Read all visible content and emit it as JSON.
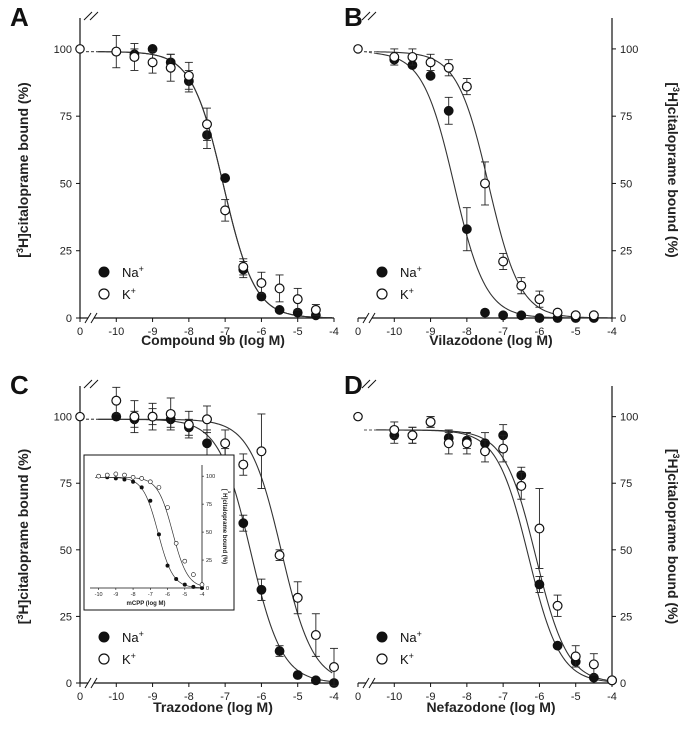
{
  "chart_data": [
    {
      "type": "scatter",
      "panel_label": "A",
      "xlabel": "Compound 9b (log M)",
      "ylabel": "citaloprame bound (%)",
      "xlim": [
        -11,
        -4
      ],
      "ylim": [
        0,
        110
      ],
      "y_axis_side": "left",
      "x_ticks": [
        "0",
        "-10",
        "-9",
        "-8",
        "-7",
        "-6",
        "-5",
        "-4"
      ],
      "y_ticks": [
        0,
        25,
        50,
        75,
        100
      ],
      "legend": {
        "placement": "bottom-left",
        "entries": [
          {
            "marker": "filled",
            "ion": "Na"
          },
          {
            "marker": "open",
            "ion": "K"
          }
        ]
      },
      "series": [
        {
          "name": "Na+",
          "marker": "filled",
          "x": [
            -10,
            -9.5,
            -9,
            -8.5,
            -8,
            -7.5,
            -7,
            -6.5,
            -6,
            -5.5,
            -5,
            -4.5
          ],
          "y": [
            99,
            98,
            100,
            95,
            88,
            68,
            52,
            18,
            8,
            3,
            2,
            1
          ],
          "err": [
            0,
            2,
            0,
            3,
            4,
            5,
            0,
            3,
            0,
            0,
            0,
            0
          ],
          "fit": {
            "top": 99,
            "bottom": 0,
            "logIC50": -7.05,
            "hill": 1.0
          }
        },
        {
          "name": "K+",
          "marker": "open",
          "x": [
            -10,
            -9.5,
            -9,
            -8.5,
            -8,
            -7.5,
            -7,
            -6.5,
            -6,
            -5.5,
            -5,
            -4.5
          ],
          "y": [
            99,
            97,
            95,
            93,
            90,
            72,
            40,
            19,
            13,
            11,
            7,
            3
          ],
          "err": [
            6,
            5,
            4,
            5,
            5,
            6,
            4,
            3,
            4,
            5,
            4,
            2
          ],
          "fit": {
            "top": 99,
            "bottom": 0,
            "logIC50": -7.05,
            "hill": 1.0
          }
        }
      ],
      "control_point": {
        "x_label": "0",
        "y": 100
      }
    },
    {
      "type": "scatter",
      "panel_label": "B",
      "xlabel": "Vilazodone (log M)",
      "ylabel": "citaloprame bound (%)",
      "xlim": [
        -11,
        -4
      ],
      "ylim": [
        0,
        110
      ],
      "y_axis_side": "right",
      "x_ticks": [
        "0",
        "-10",
        "-9",
        "-8",
        "-7",
        "-6",
        "-5",
        "-4"
      ],
      "y_ticks": [
        0,
        25,
        50,
        75,
        100
      ],
      "legend": {
        "placement": "bottom-left",
        "entries": [
          {
            "marker": "filled",
            "ion": "Na"
          },
          {
            "marker": "open",
            "ion": "K"
          }
        ]
      },
      "series": [
        {
          "name": "Na+",
          "marker": "filled",
          "x": [
            -10,
            -9.5,
            -9,
            -8.5,
            -8,
            -7.5,
            -7,
            -6.5,
            -6,
            -5.5,
            -5,
            -4.5
          ],
          "y": [
            96,
            94,
            90,
            77,
            33,
            2,
            1,
            1,
            0,
            0,
            0,
            0
          ],
          "err": [
            0,
            0,
            0,
            5,
            8,
            0,
            0,
            0,
            0,
            0,
            0,
            0
          ],
          "fit": {
            "top": 99,
            "bottom": 0,
            "logIC50": -8.35,
            "hill": 1.0
          }
        },
        {
          "name": "K+",
          "marker": "open",
          "x": [
            -10,
            -9.5,
            -9,
            -8.5,
            -8,
            -7.5,
            -7,
            -6.5,
            -6,
            -5.5,
            -5,
            -4.5
          ],
          "y": [
            97,
            97,
            95,
            93,
            86,
            50,
            21,
            12,
            7,
            2,
            1,
            1
          ],
          "err": [
            3,
            3,
            3,
            3,
            3,
            8,
            3,
            3,
            3,
            1,
            1,
            0
          ],
          "fit": {
            "top": 99,
            "bottom": 0,
            "logIC50": -7.4,
            "hill": 1.0
          }
        }
      ],
      "control_point": {
        "x_label": "0",
        "y": 100
      }
    },
    {
      "type": "scatter",
      "panel_label": "C",
      "xlabel": "Trazodone (log M)",
      "ylabel": "citaloprame bound (%)",
      "xlim": [
        -11,
        -4
      ],
      "ylim": [
        0,
        110
      ],
      "y_axis_side": "left",
      "x_ticks": [
        "0",
        "-10",
        "-9",
        "-8",
        "-7",
        "-6",
        "-5",
        "-4"
      ],
      "y_ticks": [
        0,
        25,
        50,
        75,
        100
      ],
      "legend": {
        "placement": "bottom-left",
        "entries": [
          {
            "marker": "filled",
            "ion": "Na"
          },
          {
            "marker": "open",
            "ion": "K"
          }
        ]
      },
      "series": [
        {
          "name": "Na+",
          "marker": "filled",
          "x": [
            -10,
            -9.5,
            -9,
            -8.5,
            -8,
            -7.5,
            -7,
            -6.5,
            -6,
            -5.5,
            -5,
            -4.5,
            -4
          ],
          "y": [
            100,
            99,
            100,
            99,
            96,
            90,
            84,
            60,
            35,
            12,
            3,
            1,
            0
          ],
          "err": [
            0,
            3,
            3,
            3,
            3,
            5,
            4,
            3,
            4,
            2,
            0,
            0,
            0
          ],
          "fit": {
            "top": 99,
            "bottom": 0,
            "logIC50": -6.3,
            "hill": 1.0
          }
        },
        {
          "name": "K+",
          "marker": "open",
          "x": [
            -10,
            -9.5,
            -9,
            -8.5,
            -8,
            -7.5,
            -7,
            -6.5,
            -6,
            -5.5,
            -5,
            -4.5,
            -4
          ],
          "y": [
            106,
            100,
            100,
            101,
            97,
            99,
            90,
            82,
            87,
            48,
            32,
            18,
            6
          ],
          "err": [
            5,
            6,
            5,
            6,
            5,
            5,
            5,
            4,
            14,
            2,
            6,
            8,
            7
          ],
          "fit": {
            "top": 99,
            "bottom": 0,
            "logIC50": -5.45,
            "hill": 1.0
          }
        }
      ],
      "control_point": {
        "x_label": "0",
        "y": 100
      },
      "inset": {
        "xlabel": "mCPP (log M)",
        "ylabel": "citaloprame bound (%)",
        "x_ticks": [
          "-10",
          "-9",
          "-8",
          "-7",
          "-6",
          "-5",
          "-4"
        ],
        "y_ticks": [
          0,
          25,
          50,
          75,
          100
        ],
        "xlim": [
          -10.5,
          -4
        ],
        "ylim": [
          0,
          110
        ],
        "series": [
          {
            "name": "Na+",
            "marker": "filled",
            "x": [
              -10,
              -9.5,
              -9,
              -8.5,
              -8,
              -7.5,
              -7,
              -6.5,
              -6,
              -5.5,
              -5,
              -4.5,
              -4
            ],
            "y": [
              100,
              99,
              98,
              97,
              95,
              90,
              78,
              48,
              20,
              8,
              3,
              1,
              0
            ],
            "fit": {
              "top": 99,
              "bottom": 0,
              "logIC50": -6.55,
              "hill": 1.0
            }
          },
          {
            "name": "K+",
            "marker": "open",
            "x": [
              -10,
              -9.5,
              -9,
              -8.5,
              -8,
              -7.5,
              -7,
              -6.5,
              -6,
              -5.5,
              -5,
              -4.5,
              -4
            ],
            "y": [
              100,
              101,
              102,
              101,
              99,
              98,
              95,
              90,
              72,
              40,
              24,
              12,
              3
            ],
            "fit": {
              "top": 99,
              "bottom": 0,
              "logIC50": -5.7,
              "hill": 1.0
            }
          }
        ]
      }
    },
    {
      "type": "scatter",
      "panel_label": "D",
      "xlabel": "Nefazodone (log M)",
      "ylabel": "citaloprame bound (%)",
      "xlim": [
        -11,
        -4
      ],
      "ylim": [
        0,
        110
      ],
      "y_axis_side": "right",
      "x_ticks": [
        "0",
        "-10",
        "-9",
        "-8",
        "-7",
        "-6",
        "-5",
        "-4"
      ],
      "y_ticks": [
        0,
        25,
        50,
        75,
        100
      ],
      "legend": {
        "placement": "bottom-left",
        "entries": [
          {
            "marker": "filled",
            "ion": "Na"
          },
          {
            "marker": "open",
            "ion": "K"
          }
        ]
      },
      "series": [
        {
          "name": "Na+",
          "marker": "filled",
          "x": [
            -10,
            -9.5,
            -9,
            -8.5,
            -8,
            -7.5,
            -7,
            -6.5,
            -6,
            -5.5,
            -5,
            -4.5,
            -4
          ],
          "y": [
            93,
            93,
            98,
            92,
            91,
            90,
            93,
            78,
            37,
            14,
            8,
            2,
            1
          ],
          "err": [
            3,
            3,
            2,
            3,
            3,
            4,
            4,
            3,
            3,
            0,
            0,
            0,
            0
          ],
          "fit": {
            "top": 95,
            "bottom": 0,
            "logIC50": -6.3,
            "hill": 1.0
          }
        },
        {
          "name": "K+",
          "marker": "open",
          "x": [
            -10,
            -9.5,
            -9,
            -8.5,
            -8,
            -7.5,
            -7,
            -6.5,
            -6,
            -5.5,
            -5,
            -4.5,
            -4
          ],
          "y": [
            95,
            93,
            98,
            90,
            90,
            87,
            88,
            74,
            58,
            29,
            10,
            7,
            1
          ],
          "err": [
            3,
            3,
            2,
            4,
            4,
            4,
            5,
            5,
            15,
            4,
            4,
            4,
            1
          ],
          "fit": {
            "top": 95,
            "bottom": 0,
            "logIC50": -6.1,
            "hill": 1.0
          }
        }
      ],
      "control_point": {
        "x_label": "0",
        "y": 100
      }
    }
  ]
}
